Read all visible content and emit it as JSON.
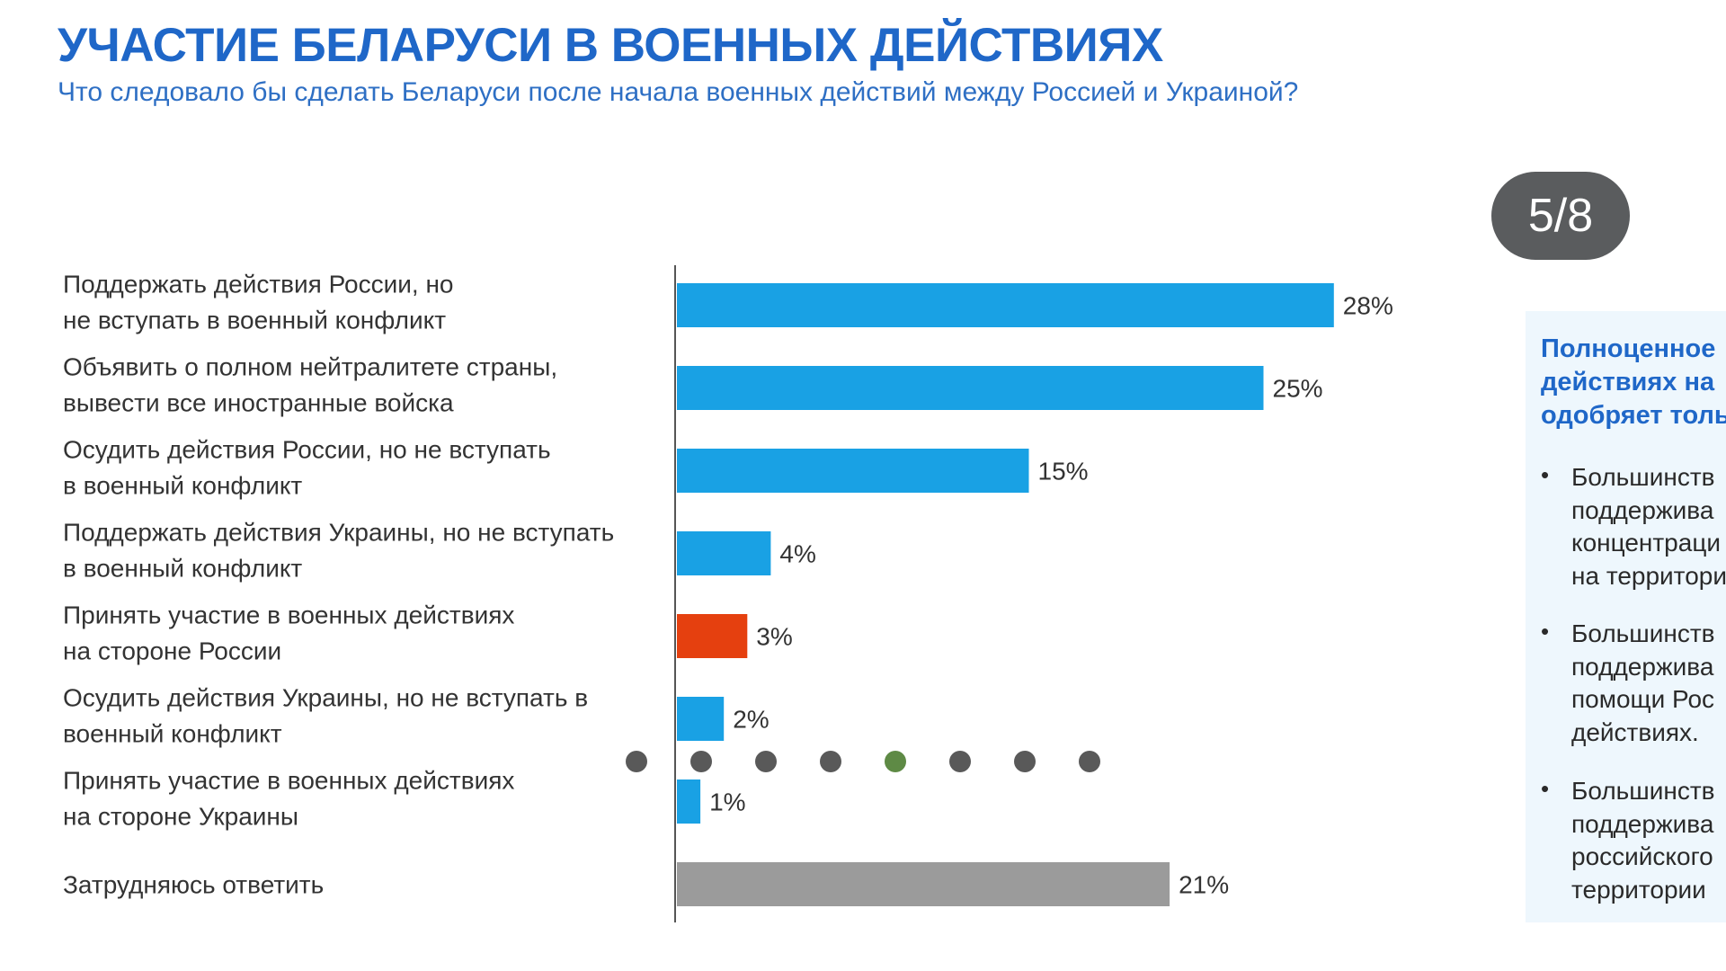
{
  "title": "УЧАСТИЕ БЕЛАРУСИ В ВОЕННЫХ ДЕЙСТВИЯХ",
  "subtitle": "Что следовало бы сделать Беларуси после начала военных действий между Россией и Украиной?",
  "viewer": {
    "counter": "5/8",
    "current_index": 5,
    "total": 8
  },
  "colors": {
    "title": "#1f67c8",
    "bar_blue": "#19a1e4",
    "bar_red": "#e5400f",
    "bar_gray": "#9b9b9b",
    "dot_inactive": "#595959",
    "dot_active": "#5e8a45",
    "counter_bg": "#5a5c5e"
  },
  "side_panel": {
    "heading_lines": [
      "Полноценное",
      "действиях на",
      "одобряет толь"
    ],
    "bullets": [
      {
        "lines": [
          "Большинств",
          "поддержива",
          "концентраци",
          "на территори"
        ]
      },
      {
        "lines": [
          "Большинств",
          "поддержива",
          "помощи Рос",
          "действиях."
        ]
      },
      {
        "lines": [
          "Большинств",
          "поддержива",
          "российского",
          "территории"
        ]
      }
    ]
  },
  "chart_data": {
    "type": "bar",
    "orientation": "horizontal",
    "title": "УЧАСТИЕ БЕЛАРУСИ В ВОЕННЫХ ДЕЙСТВИЯХ",
    "subtitle": "Что следовало бы сделать Беларуси после начала военных действий между Россией и Украиной?",
    "unit": "%",
    "xlim": [
      0,
      28
    ],
    "categories": [
      [
        "Поддержать действия России, но",
        "не вступать в военный конфликт"
      ],
      [
        "Объявить о полном нейтралитете страны,",
        "вывести все иностранные войска"
      ],
      [
        "Осудить действия России, но не вступать",
        "в военный конфликт"
      ],
      [
        "Поддержать действия Украины, но не вступать",
        "в военный конфликт"
      ],
      [
        "Принять участие в военных действиях",
        "на стороне России"
      ],
      [
        "Осудить действия Украины, но не вступать в",
        "военный конфликт"
      ],
      [
        "Принять участие в военных действиях",
        "на стороне Украины"
      ],
      [
        "Затрудняюсь ответить"
      ]
    ],
    "values": [
      28,
      25,
      15,
      4,
      3,
      2,
      1,
      21
    ],
    "value_labels": [
      "28%",
      "25%",
      "15%",
      "4%",
      "3%",
      "2%",
      "1%",
      "21%"
    ],
    "bar_colors": [
      "#19a1e4",
      "#19a1e4",
      "#19a1e4",
      "#19a1e4",
      "#e5400f",
      "#19a1e4",
      "#19a1e4",
      "#9b9b9b"
    ]
  }
}
